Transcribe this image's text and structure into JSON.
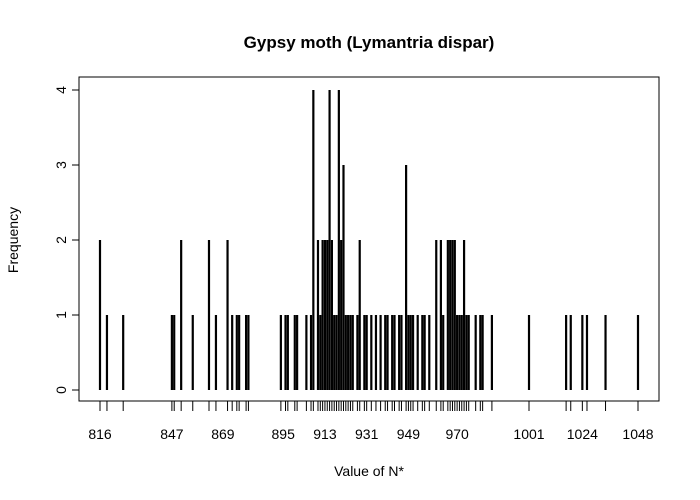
{
  "chart_data": {
    "type": "bar",
    "title": "Gypsy moth (Lymantria dispar)",
    "xlabel": "Value of N*",
    "ylabel": "Frequency",
    "ylim": [
      0,
      4
    ],
    "yticks": [
      "0",
      "1",
      "2",
      "3",
      "4"
    ],
    "xlim": [
      811,
      1051
    ],
    "xticks": [
      816,
      847,
      869,
      895,
      913,
      931,
      949,
      970,
      1001,
      1024,
      1048
    ],
    "xtick_labels": [
      "816",
      "847",
      "869",
      "895",
      "913",
      "931",
      "949",
      "970",
      "1001",
      "1024",
      "1048"
    ],
    "grid": false,
    "x": [
      816,
      819,
      826,
      847,
      848,
      851,
      856,
      863,
      866,
      871,
      873,
      875,
      876,
      879,
      880,
      894,
      896,
      897,
      900,
      901,
      905,
      907,
      908,
      910,
      911,
      912,
      913,
      914,
      915,
      916,
      917,
      918,
      919,
      920,
      921,
      922,
      923,
      924,
      925,
      927,
      928,
      930,
      931,
      933,
      935,
      937,
      939,
      940,
      942,
      943,
      945,
      946,
      948,
      949,
      950,
      951,
      953,
      955,
      956,
      958,
      961,
      963,
      964,
      966,
      967,
      968,
      969,
      970,
      971,
      972,
      973,
      974,
      975,
      978,
      980,
      981,
      985,
      1001,
      1017,
      1019,
      1024,
      1026,
      1034,
      1048
    ],
    "values": [
      2,
      1,
      1,
      1,
      1,
      2,
      1,
      2,
      1,
      2,
      1,
      1,
      1,
      1,
      1,
      1,
      1,
      1,
      1,
      1,
      1,
      1,
      4,
      2,
      1,
      2,
      2,
      2,
      4,
      2,
      1,
      1,
      4,
      2,
      3,
      1,
      1,
      1,
      1,
      1,
      2,
      1,
      1,
      1,
      1,
      1,
      1,
      1,
      1,
      1,
      1,
      1,
      3,
      1,
      1,
      1,
      1,
      1,
      1,
      1,
      2,
      2,
      1,
      2,
      2,
      2,
      2,
      1,
      1,
      1,
      2,
      1,
      1,
      1,
      1,
      1,
      1,
      1,
      1,
      1,
      1,
      1,
      1,
      1
    ]
  }
}
